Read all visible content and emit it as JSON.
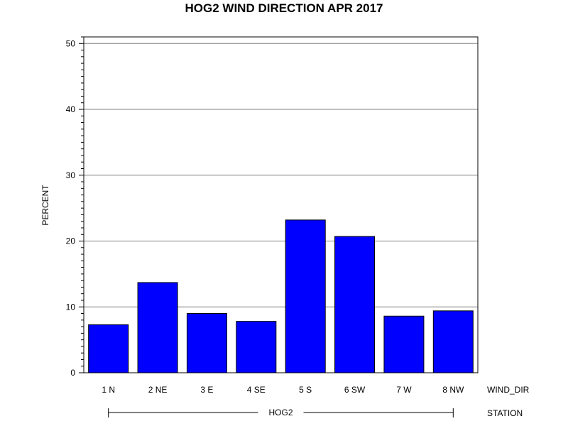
{
  "chart_data": {
    "type": "bar",
    "title": "HOG2 WIND DIRECTION APR 2017",
    "ylabel": "PERCENT",
    "xlabel": "WIND_DIR",
    "group_axis_label": "STATION",
    "group_label": "HOG2",
    "categories": [
      "1 N",
      "2 NE",
      "3 E",
      "4 SE",
      "5 S",
      "6 SW",
      "7 W",
      "8 NW"
    ],
    "series": [
      {
        "values": [
          7.3,
          13.7,
          9.0,
          7.8,
          23.2,
          20.7,
          8.6,
          9.4
        ],
        "color": "#0000ff"
      }
    ],
    "ylim": [
      0,
      51
    ],
    "yticks": [
      0,
      10,
      20,
      30,
      40,
      50
    ],
    "ytick_labels": [
      "0",
      "10",
      "20",
      "30",
      "40",
      "50"
    ],
    "minor_tick_step": 1,
    "grid": true,
    "bar_edge_color": "#000000"
  }
}
